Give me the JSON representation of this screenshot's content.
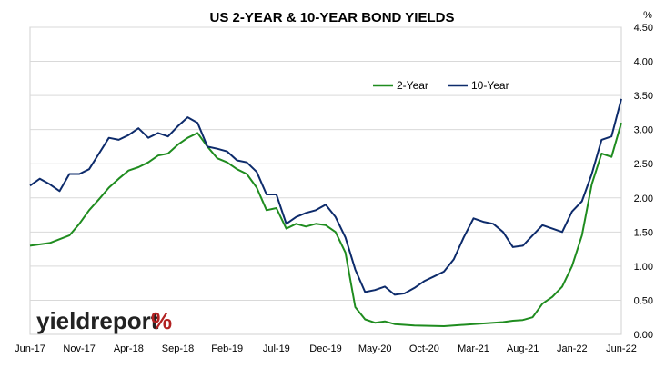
{
  "chart_data": {
    "type": "line",
    "title": "US 2-YEAR & 10-YEAR BOND YIELDS",
    "y_unit": "%",
    "ylim": [
      0,
      4.5
    ],
    "y_ticks": [
      "0.00",
      "0.50",
      "1.00",
      "1.50",
      "2.00",
      "2.50",
      "3.00",
      "3.50",
      "4.00",
      "4.50"
    ],
    "x_range": [
      "2017-06",
      "2022-06"
    ],
    "x_ticks": [
      "Jun-17",
      "Nov-17",
      "Apr-18",
      "Sep-18",
      "Feb-19",
      "Jul-19",
      "Dec-19",
      "May-20",
      "Oct-20",
      "Mar-21",
      "Aug-21",
      "Jan-22",
      "Jun-22"
    ],
    "grid": "horizontal",
    "legend_position": "top-right",
    "series": [
      {
        "name": "2-Year",
        "color": "#1f8c1f",
        "points": [
          [
            "2017-06",
            1.3
          ],
          [
            "2017-08",
            1.34
          ],
          [
            "2017-10",
            1.45
          ],
          [
            "2017-11",
            1.62
          ],
          [
            "2017-12",
            1.82
          ],
          [
            "2018-01",
            1.98
          ],
          [
            "2018-02",
            2.15
          ],
          [
            "2018-03",
            2.28
          ],
          [
            "2018-04",
            2.4
          ],
          [
            "2018-05",
            2.45
          ],
          [
            "2018-06",
            2.52
          ],
          [
            "2018-07",
            2.62
          ],
          [
            "2018-08",
            2.65
          ],
          [
            "2018-09",
            2.78
          ],
          [
            "2018-10",
            2.88
          ],
          [
            "2018-11",
            2.95
          ],
          [
            "2018-12",
            2.75
          ],
          [
            "2019-01",
            2.58
          ],
          [
            "2019-02",
            2.52
          ],
          [
            "2019-03",
            2.42
          ],
          [
            "2019-04",
            2.35
          ],
          [
            "2019-05",
            2.15
          ],
          [
            "2019-06",
            1.82
          ],
          [
            "2019-07",
            1.85
          ],
          [
            "2019-08",
            1.55
          ],
          [
            "2019-09",
            1.62
          ],
          [
            "2019-10",
            1.58
          ],
          [
            "2019-11",
            1.62
          ],
          [
            "2019-12",
            1.6
          ],
          [
            "2020-01",
            1.5
          ],
          [
            "2020-02",
            1.2
          ],
          [
            "2020-03",
            0.4
          ],
          [
            "2020-04",
            0.22
          ],
          [
            "2020-05",
            0.17
          ],
          [
            "2020-06",
            0.19
          ],
          [
            "2020-07",
            0.15
          ],
          [
            "2020-09",
            0.13
          ],
          [
            "2020-12",
            0.12
          ],
          [
            "2021-03",
            0.15
          ],
          [
            "2021-06",
            0.18
          ],
          [
            "2021-07",
            0.2
          ],
          [
            "2021-08",
            0.21
          ],
          [
            "2021-09",
            0.25
          ],
          [
            "2021-10",
            0.45
          ],
          [
            "2021-11",
            0.55
          ],
          [
            "2021-12",
            0.7
          ],
          [
            "2022-01",
            1.0
          ],
          [
            "2022-02",
            1.45
          ],
          [
            "2022-03",
            2.2
          ],
          [
            "2022-04",
            2.65
          ],
          [
            "2022-05",
            2.6
          ],
          [
            "2022-06",
            3.1
          ]
        ]
      },
      {
        "name": "10-Year",
        "color": "#0d2b6b",
        "points": [
          [
            "2017-06",
            2.18
          ],
          [
            "2017-07",
            2.28
          ],
          [
            "2017-08",
            2.2
          ],
          [
            "2017-09",
            2.1
          ],
          [
            "2017-10",
            2.35
          ],
          [
            "2017-11",
            2.35
          ],
          [
            "2017-12",
            2.42
          ],
          [
            "2018-01",
            2.65
          ],
          [
            "2018-02",
            2.88
          ],
          [
            "2018-03",
            2.85
          ],
          [
            "2018-04",
            2.92
          ],
          [
            "2018-05",
            3.02
          ],
          [
            "2018-06",
            2.88
          ],
          [
            "2018-07",
            2.95
          ],
          [
            "2018-08",
            2.9
          ],
          [
            "2018-09",
            3.05
          ],
          [
            "2018-10",
            3.18
          ],
          [
            "2018-11",
            3.1
          ],
          [
            "2018-12",
            2.75
          ],
          [
            "2019-01",
            2.72
          ],
          [
            "2019-02",
            2.68
          ],
          [
            "2019-03",
            2.55
          ],
          [
            "2019-04",
            2.52
          ],
          [
            "2019-05",
            2.38
          ],
          [
            "2019-06",
            2.05
          ],
          [
            "2019-07",
            2.05
          ],
          [
            "2019-08",
            1.62
          ],
          [
            "2019-09",
            1.72
          ],
          [
            "2019-10",
            1.78
          ],
          [
            "2019-11",
            1.82
          ],
          [
            "2019-12",
            1.9
          ],
          [
            "2020-01",
            1.72
          ],
          [
            "2020-02",
            1.42
          ],
          [
            "2020-03",
            0.95
          ],
          [
            "2020-04",
            0.62
          ],
          [
            "2020-05",
            0.65
          ],
          [
            "2020-06",
            0.7
          ],
          [
            "2020-07",
            0.58
          ],
          [
            "2020-08",
            0.6
          ],
          [
            "2020-09",
            0.68
          ],
          [
            "2020-10",
            0.78
          ],
          [
            "2020-11",
            0.85
          ],
          [
            "2020-12",
            0.92
          ],
          [
            "2021-01",
            1.1
          ],
          [
            "2021-02",
            1.42
          ],
          [
            "2021-03",
            1.7
          ],
          [
            "2021-04",
            1.65
          ],
          [
            "2021-05",
            1.62
          ],
          [
            "2021-06",
            1.5
          ],
          [
            "2021-07",
            1.28
          ],
          [
            "2021-08",
            1.3
          ],
          [
            "2021-09",
            1.45
          ],
          [
            "2021-10",
            1.6
          ],
          [
            "2021-11",
            1.55
          ],
          [
            "2021-12",
            1.5
          ],
          [
            "2022-01",
            1.8
          ],
          [
            "2022-02",
            1.95
          ],
          [
            "2022-03",
            2.35
          ],
          [
            "2022-04",
            2.85
          ],
          [
            "2022-05",
            2.9
          ],
          [
            "2022-06",
            3.45
          ]
        ]
      }
    ]
  },
  "watermark": {
    "text_main": "yieldreport",
    "text_symbol": "%"
  }
}
